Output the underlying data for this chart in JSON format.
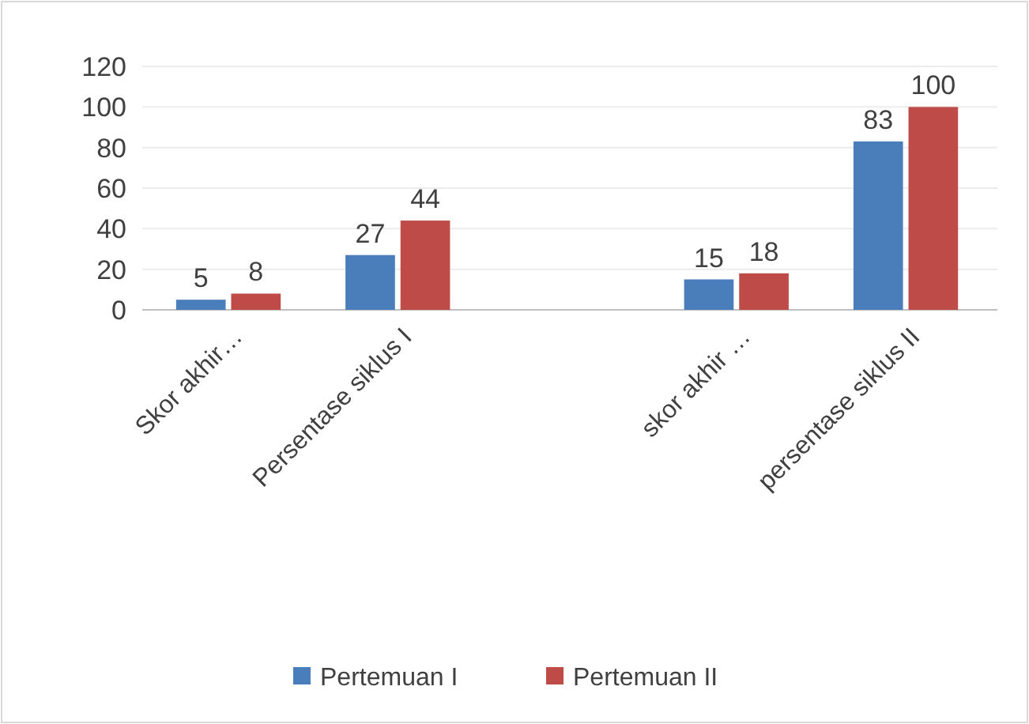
{
  "chart_data": {
    "type": "bar",
    "categories": [
      "Skor akhir…",
      "Persentase siklus I",
      null,
      "skor akhir …",
      "persentase siklus II"
    ],
    "series": [
      {
        "name": "Pertemuan I",
        "color": "#4a7ebb",
        "values": [
          5,
          27,
          null,
          15,
          83
        ]
      },
      {
        "name": "Pertemuan II",
        "color": "#be4b48",
        "values": [
          8,
          44,
          null,
          18,
          100
        ]
      }
    ],
    "ylim": [
      0,
      120
    ],
    "yticks": [
      0,
      20,
      40,
      60,
      80,
      100,
      120
    ],
    "grid": "y",
    "data_labels": true,
    "legend": "bottom"
  }
}
